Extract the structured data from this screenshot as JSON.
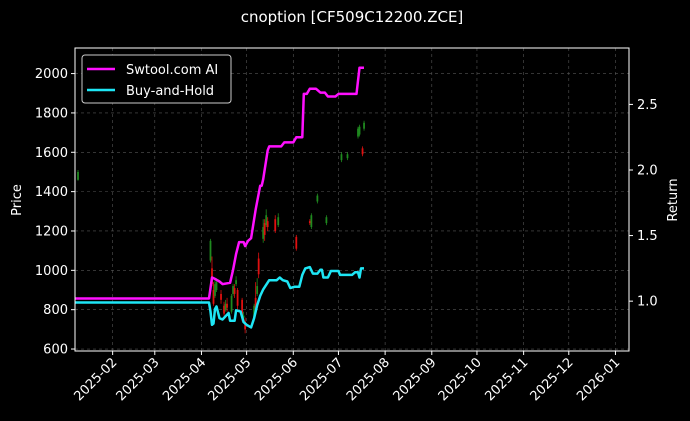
{
  "chart_data": {
    "type": "line",
    "title": "cnoption [CF509C12200.ZCE]",
    "ylabel": "Price",
    "y2label": "Return",
    "xlim": [
      "2025-01-07",
      "2026-01-10"
    ],
    "ylim": [
      590,
      2130
    ],
    "y2lim": [
      0.62,
      2.93
    ],
    "grid": true,
    "legend_position": "top-left",
    "x_ticks": [
      "2025-02-01",
      "2025-03-01",
      "2025-04-01",
      "2025-05-01",
      "2025-06-01",
      "2025-07-01",
      "2025-08-01",
      "2025-09-01",
      "2025-10-01",
      "2025-11-01",
      "2025-12-01",
      "2026-01-01"
    ],
    "x_tick_labels": [
      "2025-02",
      "2025-03",
      "2025-04",
      "2025-05",
      "2025-06",
      "2025-07",
      "2025-08",
      "2025-09",
      "2025-10",
      "2025-11",
      "2025-12",
      "2026-01"
    ],
    "y_ticks": [
      600,
      800,
      1000,
      1200,
      1400,
      1600,
      1800,
      2000
    ],
    "y2_ticks": [
      1.0,
      1.5,
      2.0,
      2.5
    ],
    "colors": {
      "background": "#000000",
      "up": "#1f8a1f",
      "down": "#e01010",
      "grid": "#555555",
      "text": "#ffffff"
    },
    "series": [
      {
        "name": "Swtool.com AI",
        "axis": "right",
        "color": "#ff10ff",
        "points": [
          [
            "2025-01-07",
            1.02
          ],
          [
            "2025-01-10",
            1.02
          ],
          [
            "2025-04-06",
            1.02
          ],
          [
            "2025-04-07",
            1.1
          ],
          [
            "2025-04-08",
            1.18
          ],
          [
            "2025-04-10",
            1.17
          ],
          [
            "2025-04-13",
            1.15
          ],
          [
            "2025-04-15",
            1.13
          ],
          [
            "2025-04-20",
            1.14
          ],
          [
            "2025-04-22",
            1.24
          ],
          [
            "2025-04-24",
            1.36
          ],
          [
            "2025-04-26",
            1.45
          ],
          [
            "2025-04-29",
            1.45
          ],
          [
            "2025-04-30",
            1.42
          ],
          [
            "2025-05-02",
            1.46
          ],
          [
            "2025-05-04",
            1.48
          ],
          [
            "2025-05-07",
            1.7
          ],
          [
            "2025-05-10",
            1.88
          ],
          [
            "2025-05-11",
            1.88
          ],
          [
            "2025-05-12",
            1.93
          ],
          [
            "2025-05-15",
            2.15
          ],
          [
            "2025-05-16",
            2.18
          ],
          [
            "2025-05-24",
            2.18
          ],
          [
            "2025-05-26",
            2.21
          ],
          [
            "2025-06-01",
            2.21
          ],
          [
            "2025-06-03",
            2.25
          ],
          [
            "2025-06-07",
            2.25
          ],
          [
            "2025-06-08",
            2.58
          ],
          [
            "2025-06-10",
            2.58
          ],
          [
            "2025-06-12",
            2.62
          ],
          [
            "2025-06-16",
            2.62
          ],
          [
            "2025-06-19",
            2.59
          ],
          [
            "2025-06-22",
            2.59
          ],
          [
            "2025-06-24",
            2.56
          ],
          [
            "2025-06-29",
            2.56
          ],
          [
            "2025-07-01",
            2.58
          ],
          [
            "2025-07-13",
            2.58
          ],
          [
            "2025-07-15",
            2.78
          ],
          [
            "2025-07-18",
            2.78
          ]
        ]
      },
      {
        "name": "Buy-and-Hold",
        "axis": "right",
        "color": "#1ee6f5",
        "points": [
          [
            "2025-01-07",
            0.99
          ],
          [
            "2025-01-10",
            0.99
          ],
          [
            "2025-04-06",
            0.99
          ],
          [
            "2025-04-07",
            0.92
          ],
          [
            "2025-04-08",
            0.82
          ],
          [
            "2025-04-09",
            0.83
          ],
          [
            "2025-04-10",
            0.94
          ],
          [
            "2025-04-11",
            0.96
          ],
          [
            "2025-04-13",
            0.87
          ],
          [
            "2025-04-15",
            0.86
          ],
          [
            "2025-04-19",
            0.91
          ],
          [
            "2025-04-20",
            0.85
          ],
          [
            "2025-04-23",
            0.85
          ],
          [
            "2025-04-24",
            0.93
          ],
          [
            "2025-04-27",
            0.92
          ],
          [
            "2025-04-29",
            0.84
          ],
          [
            "2025-05-01",
            0.82
          ],
          [
            "2025-05-04",
            0.8
          ],
          [
            "2025-05-06",
            0.87
          ],
          [
            "2025-05-08",
            0.97
          ],
          [
            "2025-05-10",
            1.04
          ],
          [
            "2025-05-12",
            1.09
          ],
          [
            "2025-05-16",
            1.16
          ],
          [
            "2025-05-21",
            1.16
          ],
          [
            "2025-05-23",
            1.18
          ],
          [
            "2025-05-25",
            1.16
          ],
          [
            "2025-05-28",
            1.15
          ],
          [
            "2025-05-30",
            1.1
          ],
          [
            "2025-06-02",
            1.11
          ],
          [
            "2025-06-05",
            1.11
          ],
          [
            "2025-06-07",
            1.2
          ],
          [
            "2025-06-09",
            1.25
          ],
          [
            "2025-06-12",
            1.26
          ],
          [
            "2025-06-14",
            1.21
          ],
          [
            "2025-06-17",
            1.21
          ],
          [
            "2025-06-19",
            1.24
          ],
          [
            "2025-06-20",
            1.24
          ],
          [
            "2025-06-21",
            1.18
          ],
          [
            "2025-06-24",
            1.18
          ],
          [
            "2025-06-26",
            1.23
          ],
          [
            "2025-06-29",
            1.23
          ],
          [
            "2025-07-01",
            1.23
          ],
          [
            "2025-07-02",
            1.2
          ],
          [
            "2025-07-10",
            1.2
          ],
          [
            "2025-07-12",
            1.22
          ],
          [
            "2025-07-14",
            1.22
          ],
          [
            "2025-07-15",
            1.18
          ],
          [
            "2025-07-16",
            1.25
          ],
          [
            "2025-07-18",
            1.25
          ]
        ]
      }
    ],
    "candles": [
      {
        "date": "2025-01-09",
        "open": 1460,
        "close": 1500,
        "high": 1510,
        "low": 1455
      },
      {
        "date": "2025-04-07",
        "open": 1050,
        "close": 1150,
        "high": 1160,
        "low": 1040
      },
      {
        "date": "2025-04-08",
        "open": 1010,
        "close": 930,
        "high": 1070,
        "low": 920
      },
      {
        "date": "2025-04-09",
        "open": 900,
        "close": 830,
        "high": 940,
        "low": 820
      },
      {
        "date": "2025-04-10",
        "open": 870,
        "close": 930,
        "high": 950,
        "low": 860
      },
      {
        "date": "2025-04-11",
        "open": 900,
        "close": 940,
        "high": 960,
        "low": 890
      },
      {
        "date": "2025-04-14",
        "open": 880,
        "close": 850,
        "high": 900,
        "low": 830
      },
      {
        "date": "2025-04-16",
        "open": 820,
        "close": 780,
        "high": 840,
        "low": 770
      },
      {
        "date": "2025-04-17",
        "open": 800,
        "close": 830,
        "high": 850,
        "low": 790
      },
      {
        "date": "2025-04-18",
        "open": 830,
        "close": 810,
        "high": 860,
        "low": 790
      },
      {
        "date": "2025-04-21",
        "open": 790,
        "close": 870,
        "high": 880,
        "low": 780
      },
      {
        "date": "2025-04-22",
        "open": 880,
        "close": 920,
        "high": 930,
        "low": 870
      },
      {
        "date": "2025-04-23",
        "open": 910,
        "close": 880,
        "high": 930,
        "low": 860
      },
      {
        "date": "2025-04-24",
        "open": 930,
        "close": 950,
        "high": 970,
        "low": 920
      },
      {
        "date": "2025-04-25",
        "open": 900,
        "close": 820,
        "high": 910,
        "low": 800
      },
      {
        "date": "2025-04-28",
        "open": 850,
        "close": 760,
        "high": 860,
        "low": 740
      },
      {
        "date": "2025-04-29",
        "open": 760,
        "close": 770,
        "high": 790,
        "low": 740
      },
      {
        "date": "2025-04-30",
        "open": 740,
        "close": 700,
        "high": 760,
        "low": 680
      },
      {
        "date": "2025-05-06",
        "open": 760,
        "close": 820,
        "high": 830,
        "low": 740
      },
      {
        "date": "2025-05-07",
        "open": 860,
        "close": 800,
        "high": 940,
        "low": 780
      },
      {
        "date": "2025-05-08",
        "open": 880,
        "close": 920,
        "high": 960,
        "low": 870
      },
      {
        "date": "2025-05-09",
        "open": 1060,
        "close": 980,
        "high": 1090,
        "low": 960
      },
      {
        "date": "2025-05-12",
        "open": 1160,
        "close": 1220,
        "high": 1260,
        "low": 1140
      },
      {
        "date": "2025-05-13",
        "open": 1240,
        "close": 1180,
        "high": 1260,
        "low": 1150
      },
      {
        "date": "2025-05-14",
        "open": 1230,
        "close": 1280,
        "high": 1310,
        "low": 1220
      },
      {
        "date": "2025-05-15",
        "open": 1250,
        "close": 1220,
        "high": 1270,
        "low": 1200
      },
      {
        "date": "2025-05-20",
        "open": 1260,
        "close": 1200,
        "high": 1280,
        "low": 1190
      },
      {
        "date": "2025-05-22",
        "open": 1230,
        "close": 1270,
        "high": 1290,
        "low": 1220
      },
      {
        "date": "2025-06-03",
        "open": 1170,
        "close": 1110,
        "high": 1180,
        "low": 1100
      },
      {
        "date": "2025-06-12",
        "open": 1250,
        "close": 1240,
        "high": 1260,
        "low": 1230
      },
      {
        "date": "2025-06-13",
        "open": 1220,
        "close": 1280,
        "high": 1290,
        "low": 1210
      },
      {
        "date": "2025-06-17",
        "open": 1350,
        "close": 1380,
        "high": 1390,
        "low": 1340
      },
      {
        "date": "2025-06-23",
        "open": 1240,
        "close": 1270,
        "high": 1280,
        "low": 1230
      },
      {
        "date": "2025-07-03",
        "open": 1560,
        "close": 1590,
        "high": 1600,
        "low": 1550
      },
      {
        "date": "2025-07-07",
        "open": 1570,
        "close": 1590,
        "high": 1600,
        "low": 1560
      },
      {
        "date": "2025-07-14",
        "open": 1680,
        "close": 1720,
        "high": 1730,
        "low": 1670
      },
      {
        "date": "2025-07-15",
        "open": 1690,
        "close": 1730,
        "high": 1740,
        "low": 1680
      },
      {
        "date": "2025-07-17",
        "open": 1620,
        "close": 1590,
        "high": 1630,
        "low": 1580
      },
      {
        "date": "2025-07-18",
        "open": 1720,
        "close": 1750,
        "high": 1760,
        "low": 1710
      }
    ]
  }
}
